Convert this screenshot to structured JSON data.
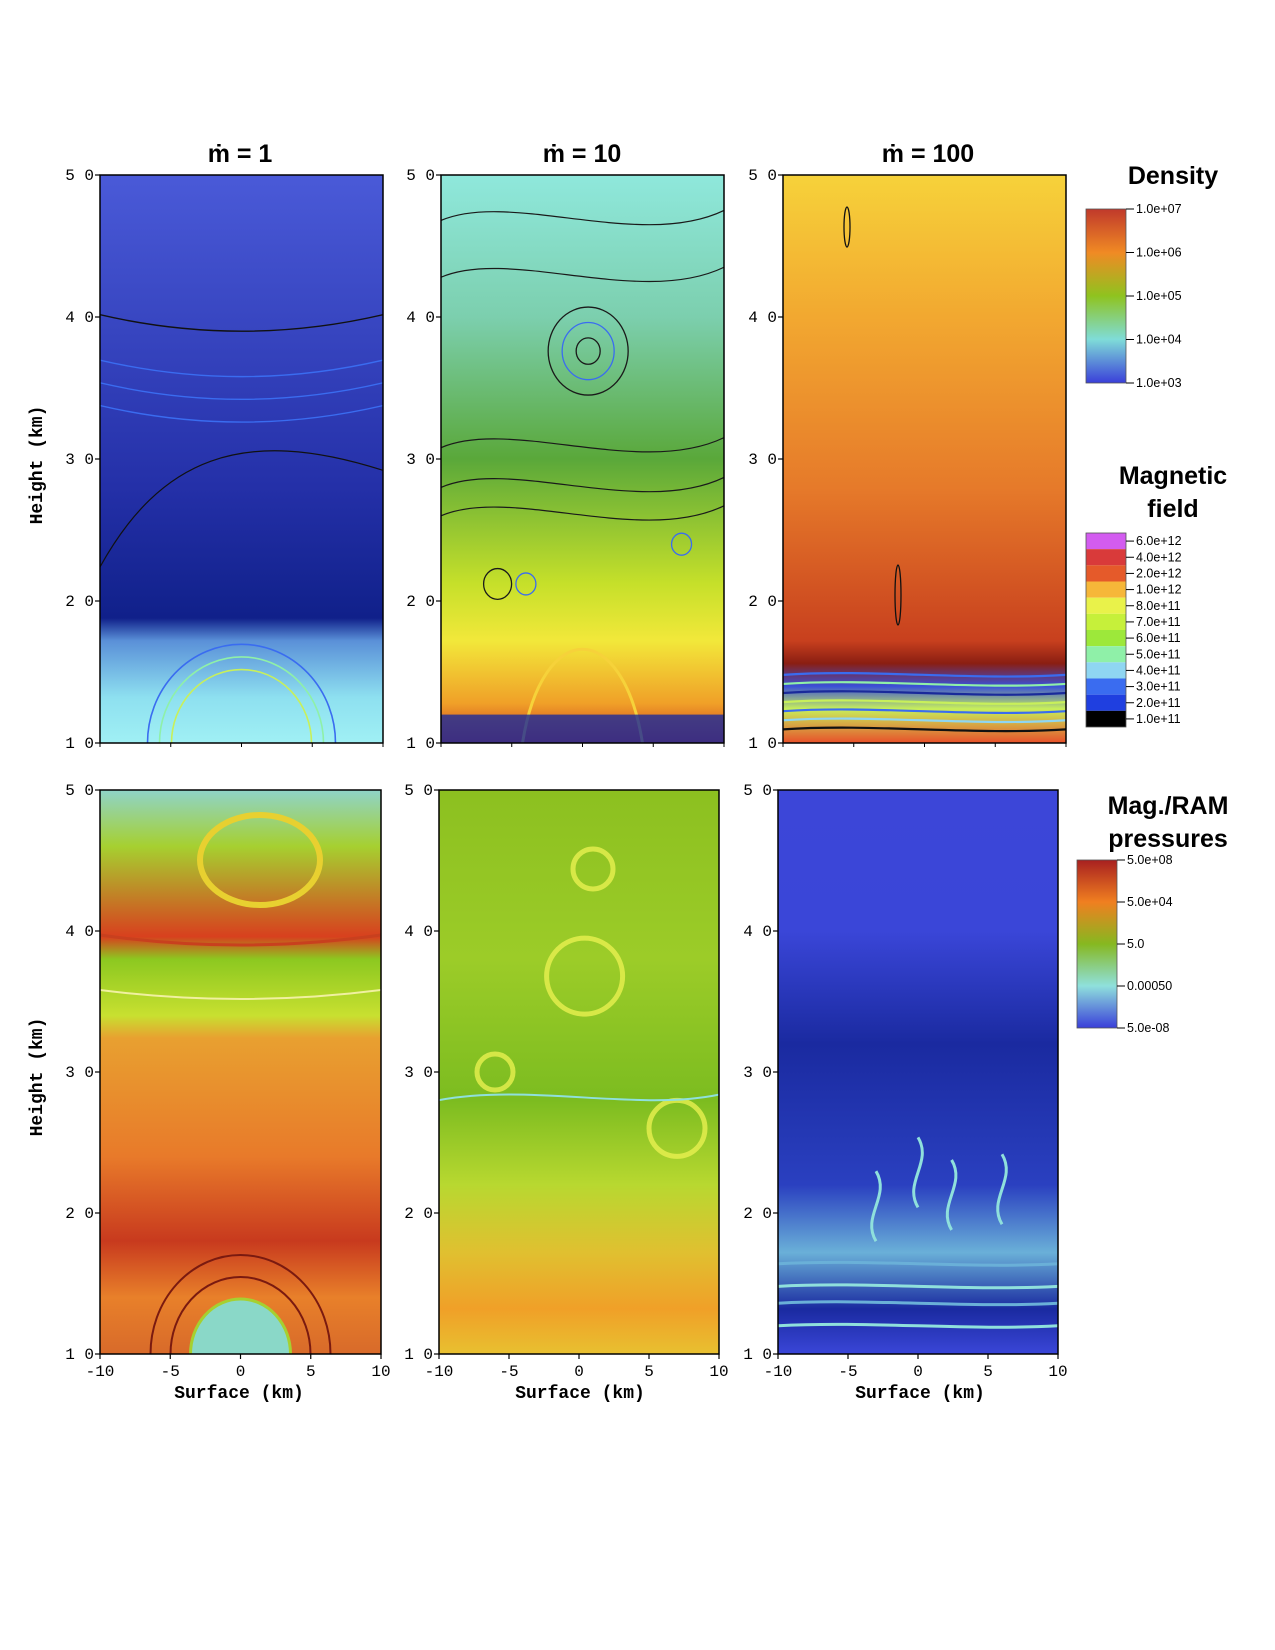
{
  "chart_data": {
    "type": "heatmap",
    "columns": [
      {
        "title": "ṁ = 1"
      },
      {
        "title": "ṁ = 10"
      },
      {
        "title": "ṁ = 100"
      }
    ],
    "rows": [
      {
        "colorbar_title_lines": [
          "Density"
        ],
        "secondary_colorbar_title_lines": [
          "Magnetic",
          "field"
        ]
      },
      {
        "colorbar_title_lines": [
          "Mag./RAM",
          "pressures"
        ]
      }
    ],
    "ylabel": "Height (km)",
    "xlabel": "Surface (km)",
    "y_ticks": [
      "1 0",
      "2 0",
      "3 0",
      "4 0",
      "5 0"
    ],
    "y_tick_values": [
      10,
      20,
      30,
      40,
      50
    ],
    "x_ticks": [
      "-10",
      "-5",
      "0",
      "5",
      "10"
    ],
    "x_tick_values": [
      -10,
      -5,
      0,
      5,
      10
    ],
    "xlim": [
      -10,
      10
    ],
    "ylim": [
      10,
      50
    ],
    "colorbars": {
      "density": {
        "title": "Density",
        "labels": [
          "1.0e+07",
          "1.0e+06",
          "1.0e+05",
          "1.0e+04",
          "1.0e+03"
        ],
        "values": [
          10000000,
          1000000,
          100000,
          10000,
          1000
        ],
        "colors": [
          "#c0392b",
          "#f08a24",
          "#8fc31f",
          "#7fdcd8",
          "#3a3fd9"
        ]
      },
      "magnetic_field": {
        "title": "Magnetic field",
        "labels": [
          "6.0e+12",
          "4.0e+12",
          "2.0e+12",
          "1.0e+12",
          "8.0e+11",
          "7.0e+11",
          "6.0e+11",
          "5.0e+11",
          "4.0e+11",
          "3.0e+11",
          "2.0e+11",
          "1.0e+11"
        ],
        "values": [
          6000000000000.0,
          4000000000000.0,
          2000000000000.0,
          1000000000000.0,
          800000000000.0,
          700000000000.0,
          600000000000.0,
          500000000000.0,
          400000000000.0,
          300000000000.0,
          200000000000.0,
          100000000000.0
        ],
        "colors": [
          "#d35cf0",
          "#d93a3a",
          "#e55a2a",
          "#f6b739",
          "#e9f24a",
          "#c6f03a",
          "#9de83a",
          "#8ff0a8",
          "#8fd6f2",
          "#3a6cf0",
          "#1f3fe0",
          "#000000"
        ]
      },
      "pressure_ratio": {
        "title": "Mag./RAM pressures",
        "labels": [
          "5.0e+08",
          "5.0e+04",
          "5.0",
          "0.00050",
          "5.0e-08"
        ],
        "values": [
          500000000,
          50000,
          5.0,
          0.0005,
          5e-08
        ],
        "colors": [
          "#a82020",
          "#f07f20",
          "#86b820",
          "#8fe0dc",
          "#3a3fd9"
        ]
      }
    }
  }
}
